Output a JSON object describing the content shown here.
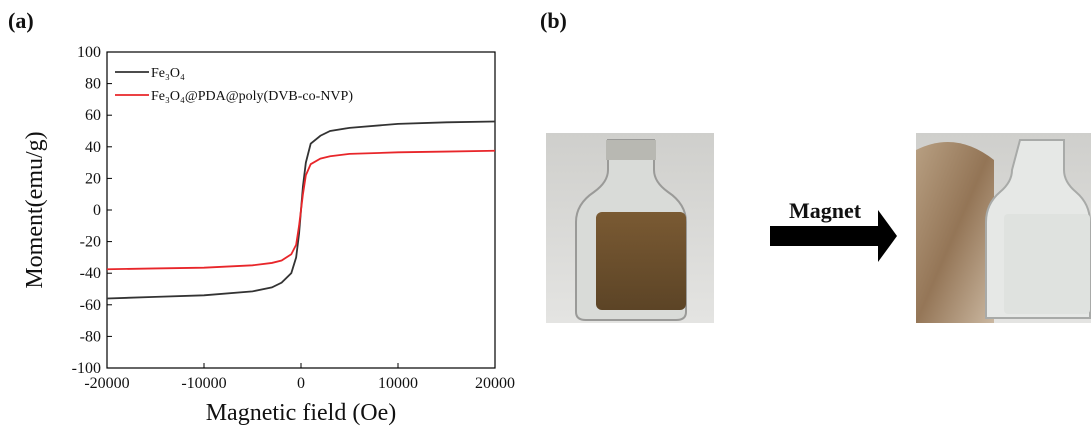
{
  "panels": {
    "a": "(a)",
    "b": "(b)"
  },
  "arrow_label": "Magnet",
  "chart_data": {
    "type": "line",
    "xlabel": "Magnetic field (Oe)",
    "ylabel": "Moment(emu/g)",
    "x": [
      -20000,
      -15000,
      -10000,
      -5000,
      -3000,
      -2000,
      -1000,
      -500,
      -200,
      0,
      200,
      500,
      1000,
      2000,
      3000,
      5000,
      10000,
      15000,
      20000
    ],
    "series": [
      {
        "name": "Fe₃O₄",
        "color": "#333333",
        "values": [
          -56,
          -55,
          -54,
          -51.5,
          -49,
          -46,
          -40,
          -30,
          -15,
          0,
          15,
          30,
          42,
          47,
          50,
          52,
          54.5,
          55.5,
          56
        ]
      },
      {
        "name": "Fe₃O₄@PDA@poly(DVB-co-NVP)",
        "color": "#e8262a",
        "values": [
          -37.5,
          -37,
          -36.5,
          -35,
          -33.5,
          -32,
          -28,
          -22,
          -10,
          0,
          10,
          22,
          29,
          32.5,
          34,
          35.5,
          36.5,
          37,
          37.5
        ]
      }
    ],
    "xlim": [
      -20000,
      20000
    ],
    "xticks": [
      -20000,
      -10000,
      0,
      10000,
      20000
    ],
    "ylim": [
      -100,
      100
    ],
    "yticks": [
      -100,
      -80,
      -60,
      -40,
      -20,
      0,
      20,
      40,
      60,
      80,
      100
    ],
    "legend": "upper left"
  }
}
